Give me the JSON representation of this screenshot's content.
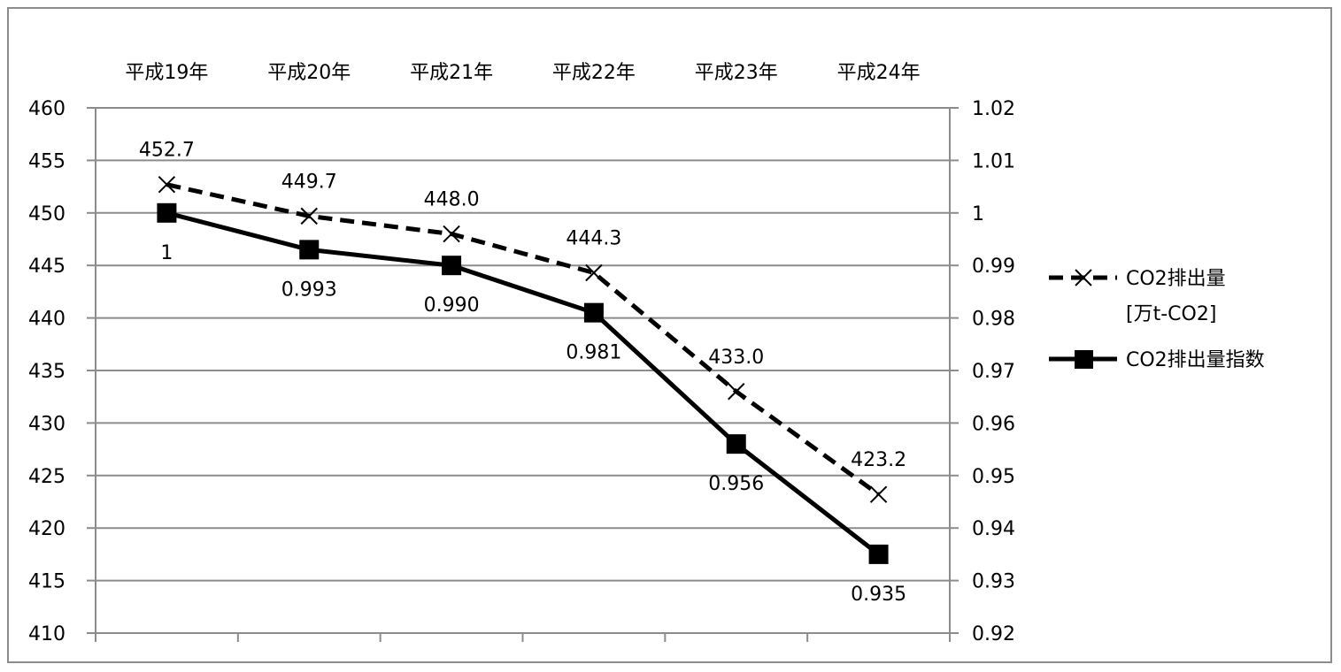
{
  "chart_data": {
    "type": "line",
    "categories": [
      "平成19年",
      "平成20年",
      "平成21年",
      "平成22年",
      "平成23年",
      "平成24年"
    ],
    "series": [
      {
        "name": "CO2排出量\n[万t-CO2]",
        "axis": "left",
        "line_style": "dashed",
        "marker": "x",
        "values": [
          452.7,
          449.7,
          448.0,
          444.3,
          433.0,
          423.2
        ],
        "data_labels": [
          "452.7",
          "449.7",
          "448.0",
          "444.3",
          "433.0",
          "423.2"
        ]
      },
      {
        "name": "CO2排出量指数",
        "axis": "right",
        "line_style": "solid",
        "marker": "square",
        "values": [
          1,
          0.993,
          0.99,
          0.981,
          0.956,
          0.935
        ],
        "data_labels": [
          "1",
          "0.993",
          "0.990",
          "0.981",
          "0.956",
          "0.935"
        ]
      }
    ],
    "y_left": {
      "ylim": [
        410,
        460
      ],
      "ticks": [
        "460",
        "455",
        "450",
        "445",
        "440",
        "435",
        "430",
        "425",
        "420",
        "415",
        "410"
      ]
    },
    "y_right": {
      "ylim": [
        0.92,
        1.02
      ],
      "ticks": [
        "1.02",
        "1.01",
        "1",
        "0.99",
        "0.98",
        "0.97",
        "0.96",
        "0.95",
        "0.94",
        "0.93",
        "0.92"
      ]
    },
    "grid": true,
    "legend_position": "right",
    "category_axis_position": "top"
  },
  "legend": {
    "co2_line1": "CO2排出量",
    "co2_line2": "[万t-CO2]",
    "index": "CO2排出量指数"
  }
}
